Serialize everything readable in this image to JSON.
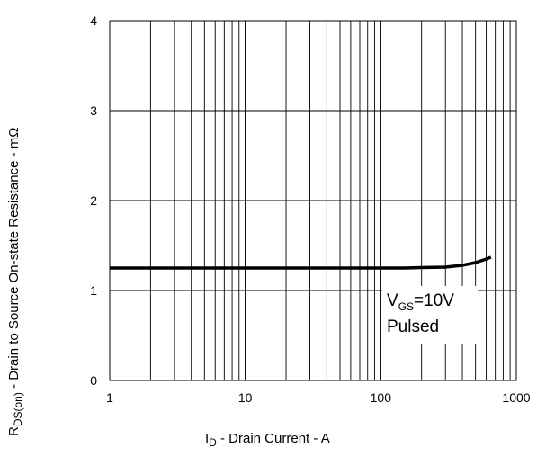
{
  "chart_data": {
    "type": "line",
    "xscale": "log",
    "xlim": [
      1,
      1000
    ],
    "ylim": [
      0,
      4
    ],
    "grid": true,
    "x_ticks": [
      "1",
      "10",
      "100",
      "1000"
    ],
    "y_ticks": [
      "0",
      "1",
      "2",
      "3",
      "4"
    ],
    "xlabel": {
      "main": "I",
      "sub": "D",
      "rest": " - Drain Current - A"
    },
    "ylabel": {
      "main": "R",
      "sub": "DS(on)",
      "rest": " - Drain to Source On-state Resistance - mΩ"
    },
    "annotation": {
      "line1": {
        "main": "V",
        "sub": "GS",
        "rest": "=10V"
      },
      "line2": "Pulsed"
    },
    "series": [
      {
        "x": [
          1,
          2,
          5,
          10,
          20,
          50,
          100,
          150,
          200,
          300,
          400,
          500,
          600,
          650
        ],
        "y": [
          1.25,
          1.25,
          1.25,
          1.25,
          1.25,
          1.25,
          1.25,
          1.25,
          1.255,
          1.26,
          1.28,
          1.31,
          1.35,
          1.37
        ],
        "color": "#000000"
      }
    ]
  }
}
